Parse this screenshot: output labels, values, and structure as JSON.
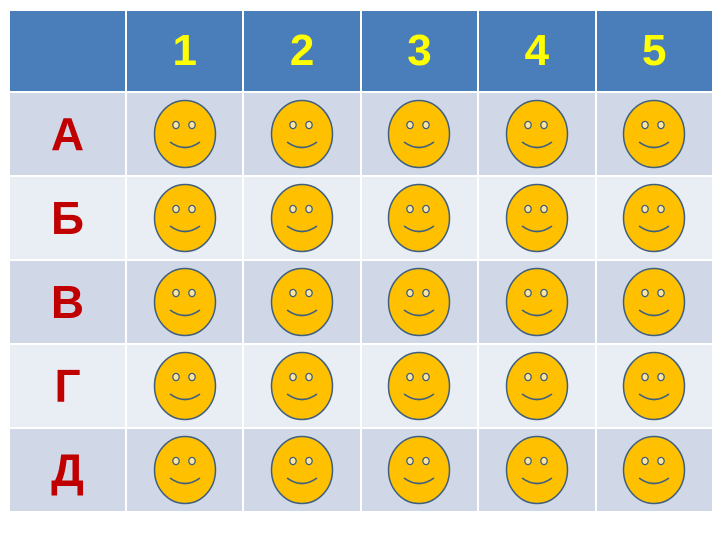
{
  "columns": [
    "1",
    "2",
    "3",
    "4",
    "5"
  ],
  "rows": [
    "А",
    "Б",
    "В",
    "Г",
    "Д"
  ],
  "cell_icon": "smiley-face-icon",
  "colors": {
    "header_bg": "#4a7ebb",
    "header_text": "#ffff00",
    "row_label_text": "#c00000",
    "row_bg_odd": "#d0d8e8",
    "row_bg_even": "#e9edf4",
    "smiley_fill": "#ffc000",
    "smiley_stroke": "#3f5f7f"
  }
}
